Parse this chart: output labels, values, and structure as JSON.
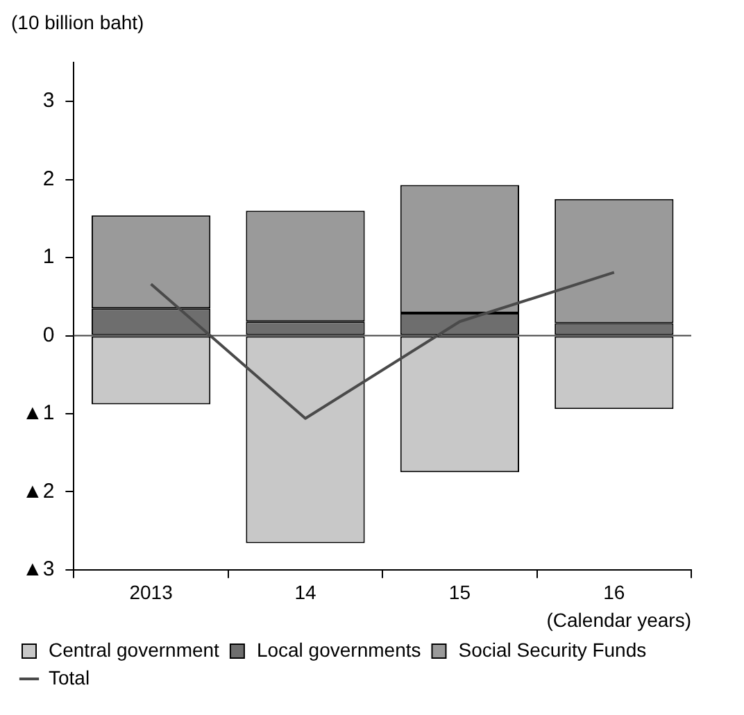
{
  "chart_data": {
    "type": "bar",
    "ylabel": "(10 billion baht)",
    "xlabel": "(Calendar years)",
    "categories": [
      "2013",
      "14",
      "15",
      "16"
    ],
    "stacked": true,
    "ylim": [
      -3,
      3.5
    ],
    "yticks": [
      {
        "value": -3,
        "label": "▲3"
      },
      {
        "value": -2,
        "label": "▲2"
      },
      {
        "value": -1,
        "label": "▲1"
      },
      0,
      1,
      2,
      3
    ],
    "legend": "bottom",
    "ref_lines": [
      {
        "axis": "y",
        "value": 0
      }
    ],
    "series": [
      {
        "name": "Central government",
        "color": "#c8c8c8",
        "values": [
          -0.88,
          -2.66,
          -1.75,
          -0.94
        ]
      },
      {
        "name": "Local governments",
        "color": "#6e6e6e",
        "values": [
          0.35,
          0.18,
          0.29,
          0.16
        ]
      },
      {
        "name": "Social Security Funds",
        "color": "#9a9a9a",
        "values": [
          1.19,
          1.42,
          1.64,
          1.59
        ]
      },
      {
        "name": "Total",
        "type": "line",
        "color": "#4a4a4a",
        "values": [
          0.66,
          -1.06,
          0.18,
          0.81
        ]
      }
    ]
  }
}
